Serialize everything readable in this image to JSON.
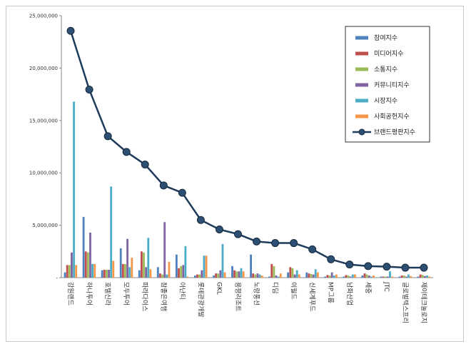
{
  "chart_data": {
    "type": "bar",
    "title": "",
    "xlabel": "",
    "ylabel": "",
    "ylim": [
      0,
      25000000
    ],
    "yticks": [
      0,
      5000000,
      10000000,
      15000000,
      20000000,
      25000000
    ],
    "ytick_labels": [
      "-",
      "5,000,000",
      "10,000,000",
      "15,000,000",
      "20,000,000",
      "25,000,000"
    ],
    "categories": [
      "강원랜드",
      "하나투어",
      "호텔신라",
      "모두투어",
      "파라다이스",
      "참좋은여행",
      "아난티",
      "롯데관광개발",
      "GKL",
      "용평리조트",
      "노랑풍선",
      "디딤",
      "이월드",
      "신세계푸드",
      "MP그룹",
      "남화산업",
      "세중",
      "JTC",
      "글로벌텍스프리",
      "제이테크놀로지"
    ],
    "series": [
      {
        "name": "참여지수",
        "color": "#4f81bd",
        "kind": "bar",
        "values": [
          500000,
          5800000,
          700000,
          2800000,
          700000,
          1000000,
          2200000,
          200000,
          200000,
          1100000,
          2200000,
          100000,
          500000,
          500000,
          100000,
          100000,
          200000,
          100000,
          100000,
          100000
        ]
      },
      {
        "name": "미디어지수",
        "color": "#c0504d",
        "kind": "bar",
        "values": [
          1200000,
          2500000,
          750000,
          1300000,
          2500000,
          400000,
          900000,
          300000,
          400000,
          700000,
          400000,
          1300000,
          1000000,
          400000,
          250000,
          250000,
          400000,
          100000,
          200000,
          300000
        ]
      },
      {
        "name": "소통지수",
        "color": "#9bbb59",
        "kind": "bar",
        "values": [
          1200000,
          2400000,
          750000,
          1300000,
          2400000,
          300000,
          1100000,
          300000,
          400000,
          600000,
          300000,
          1100000,
          900000,
          350000,
          200000,
          200000,
          300000,
          100000,
          200000,
          250000
        ]
      },
      {
        "name": "커뮤니티지수",
        "color": "#8064a2",
        "kind": "bar",
        "values": [
          2400000,
          4300000,
          750000,
          3700000,
          1000000,
          5300000,
          1200000,
          700000,
          700000,
          600000,
          400000,
          200000,
          300000,
          300000,
          500000,
          100000,
          200000,
          100000,
          100000,
          150000
        ]
      },
      {
        "name": "시장지수",
        "color": "#4bacc6",
        "kind": "bar",
        "values": [
          16800000,
          1300000,
          8700000,
          1000000,
          3800000,
          300000,
          3000000,
          2100000,
          3200000,
          900000,
          300000,
          100000,
          700000,
          800000,
          200000,
          300000,
          100000,
          600000,
          300000,
          200000
        ]
      },
      {
        "name": "사회공헌지수",
        "color": "#f79646",
        "kind": "bar",
        "values": [
          1200000,
          1300000,
          1600000,
          1900000,
          800000,
          1500000,
          100000,
          2100000,
          500000,
          600000,
          200000,
          400000,
          300000,
          500000,
          300000,
          300000,
          200000,
          100000,
          150000,
          100000
        ]
      },
      {
        "name": "브랜드평판지수",
        "color": "#1f3b5c",
        "kind": "line",
        "values": [
          23550000,
          17950000,
          13500000,
          12000000,
          10800000,
          8800000,
          8100000,
          5500000,
          4600000,
          4150000,
          3450000,
          3300000,
          3300000,
          2700000,
          1750000,
          1250000,
          1100000,
          1050000,
          950000,
          950000
        ]
      }
    ],
    "legend_position": "top-right",
    "grid": false
  }
}
